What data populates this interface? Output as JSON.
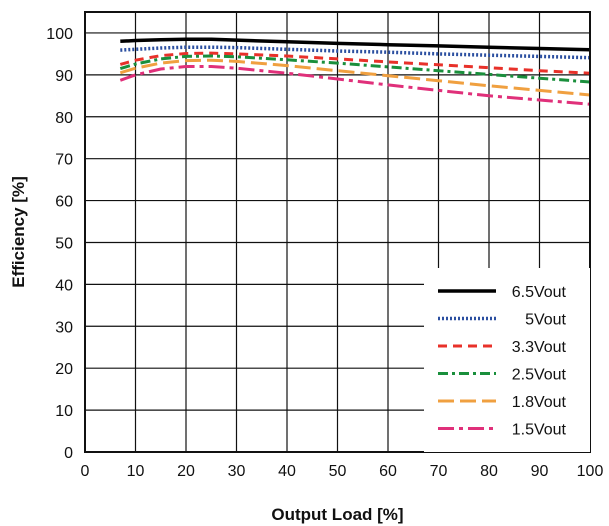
{
  "chart_data": {
    "type": "line",
    "title": "",
    "xlabel": "Output Load [%]",
    "ylabel": "Efficiency [%]",
    "xlim": [
      0,
      100
    ],
    "ylim": [
      0,
      105
    ],
    "xticks": [
      0,
      10,
      20,
      30,
      40,
      50,
      60,
      70,
      80,
      90,
      100
    ],
    "yticks": [
      0,
      10,
      20,
      30,
      40,
      50,
      60,
      70,
      80,
      90,
      100
    ],
    "grid": true,
    "legend_position": "bottom-right",
    "series": [
      {
        "name": "6.5Vout",
        "color": "#000000",
        "style": "solid",
        "x": [
          7,
          10,
          15,
          20,
          25,
          30,
          40,
          50,
          60,
          70,
          80,
          90,
          100
        ],
        "y": [
          98.0,
          98.2,
          98.4,
          98.5,
          98.5,
          98.3,
          97.9,
          97.5,
          97.2,
          96.9,
          96.6,
          96.3,
          96.0
        ]
      },
      {
        "name": "5Vout",
        "color": "#2b4fa0",
        "style": "dotted",
        "x": [
          7,
          10,
          15,
          20,
          25,
          30,
          40,
          50,
          60,
          70,
          80,
          90,
          100
        ],
        "y": [
          95.9,
          96.1,
          96.4,
          96.6,
          96.6,
          96.5,
          96.1,
          95.7,
          95.4,
          95.0,
          94.7,
          94.4,
          94.1
        ]
      },
      {
        "name": "3.3Vout",
        "color": "#e8312a",
        "style": "dashed",
        "x": [
          7,
          10,
          15,
          20,
          25,
          30,
          40,
          50,
          60,
          70,
          80,
          90,
          100
        ],
        "y": [
          92.5,
          93.5,
          94.6,
          95.1,
          95.2,
          95.0,
          94.5,
          93.8,
          93.1,
          92.4,
          91.7,
          91.0,
          90.4
        ]
      },
      {
        "name": "2.5Vout",
        "color": "#1a8f3c",
        "style": "dashdot",
        "x": [
          7,
          10,
          15,
          20,
          25,
          30,
          40,
          50,
          60,
          70,
          80,
          90,
          100
        ],
        "y": [
          91.5,
          92.6,
          93.8,
          94.4,
          94.5,
          94.3,
          93.6,
          92.8,
          91.9,
          91.0,
          90.1,
          89.2,
          88.3
        ]
      },
      {
        "name": "1.8Vout",
        "color": "#f0a040",
        "style": "longdash",
        "x": [
          7,
          10,
          15,
          20,
          25,
          30,
          40,
          50,
          60,
          70,
          80,
          90,
          100
        ],
        "y": [
          90.5,
          91.6,
          92.8,
          93.4,
          93.5,
          93.2,
          92.2,
          91.0,
          89.8,
          88.6,
          87.4,
          86.3,
          85.2
        ]
      },
      {
        "name": "1.5Vout",
        "color": "#e0307a",
        "style": "dashdotlong",
        "x": [
          7,
          10,
          15,
          20,
          25,
          30,
          40,
          50,
          60,
          70,
          80,
          90,
          100
        ],
        "y": [
          88.7,
          90.0,
          91.4,
          92.0,
          92.0,
          91.6,
          90.4,
          89.0,
          87.6,
          86.3,
          85.0,
          84.0,
          83.0
        ]
      }
    ]
  }
}
